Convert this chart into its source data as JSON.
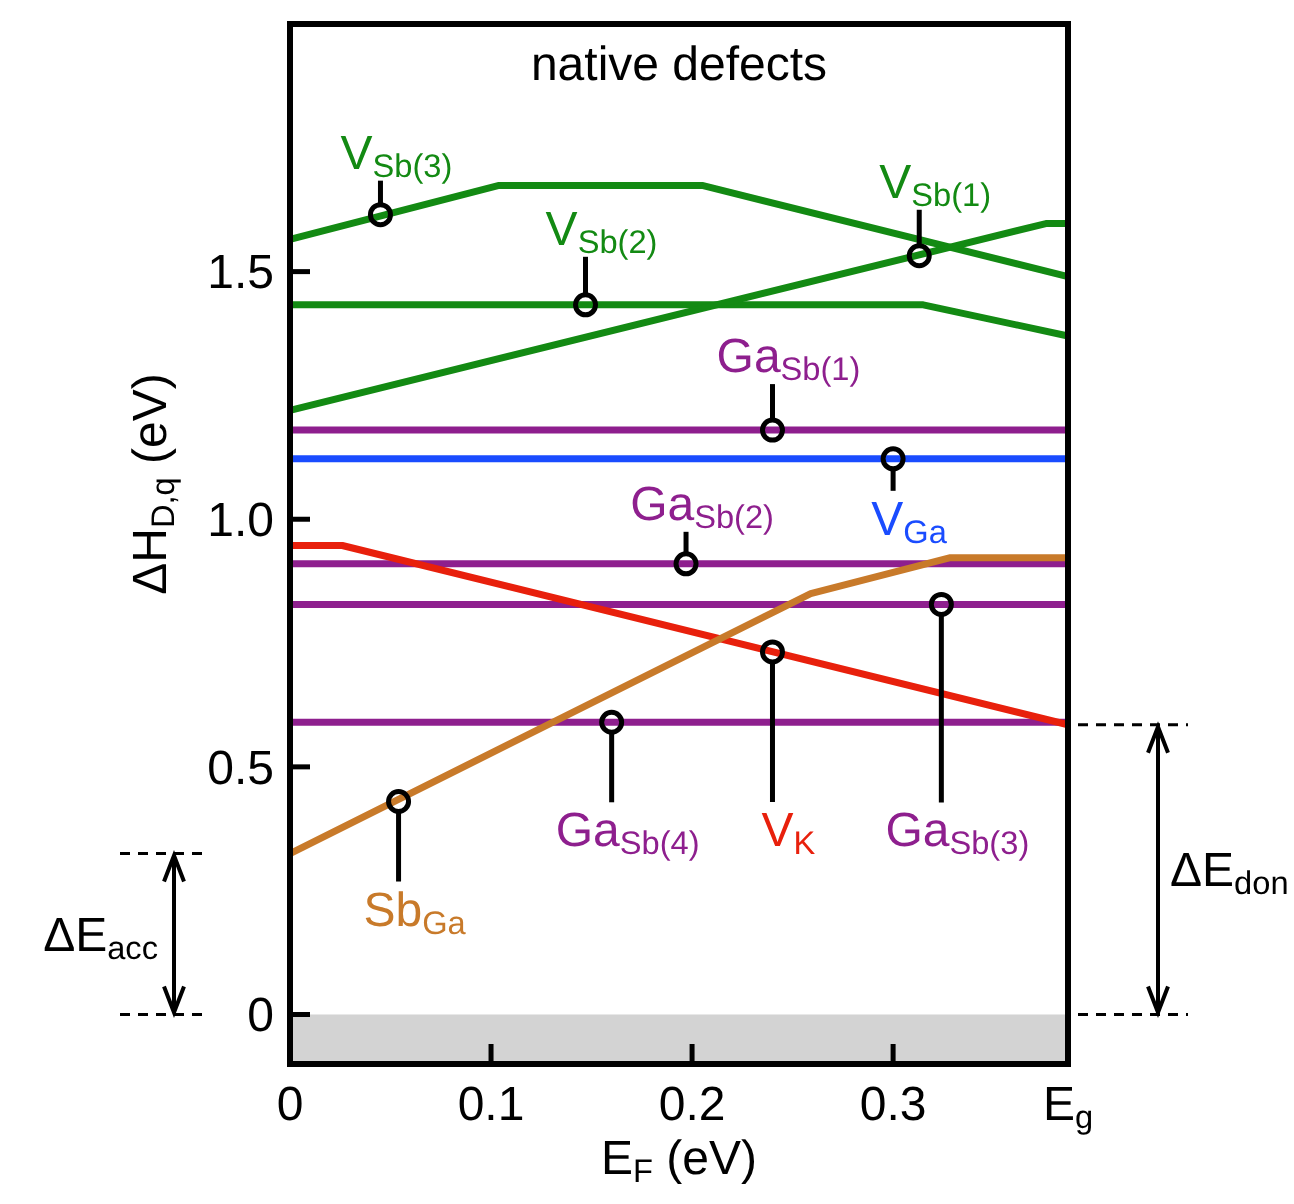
{
  "chart_data": {
    "type": "line",
    "title": "native defects",
    "xlabel": "E$_{F}$ (eV)",
    "ylabel": "ΔH$_{D,q}$ (eV)",
    "xlim": [
      0,
      0.387
    ],
    "ylim": [
      -0.1,
      2.0
    ],
    "xticks": [
      0,
      0.1,
      0.2,
      0.3,
      {
        "value": 0.387,
        "label": "E$_{g}$"
      }
    ],
    "yticks": [
      0,
      0.5,
      {
        "value": 1,
        "label": "1.0"
      },
      1.5
    ],
    "grid": false,
    "series": [
      {
        "color": "#138a13",
        "x": [
          0,
          0.104,
          0.205,
          0.387
        ],
        "values": [
          1.565,
          1.674,
          1.674,
          1.49
        ]
      },
      {
        "color": "#138a13",
        "x": [
          0,
          0.315,
          0.387
        ],
        "values": [
          1.433,
          1.433,
          1.37
        ]
      },
      {
        "color": "#138a13",
        "x": [
          0,
          0.376,
          0.387
        ],
        "values": [
          1.22,
          1.597,
          1.597
        ]
      },
      {
        "color": "#8e1f8e",
        "x": [
          0,
          0.387
        ],
        "values": [
          1.18,
          1.18
        ]
      },
      {
        "color": "#1a4cff",
        "x": [
          0,
          0.387
        ],
        "values": [
          1.122,
          1.122
        ]
      },
      {
        "color": "#8e1f8e",
        "x": [
          0,
          0.387
        ],
        "values": [
          0.91,
          0.91
        ]
      },
      {
        "color": "#8e1f8e",
        "x": [
          0,
          0.387
        ],
        "values": [
          0.828,
          0.828
        ]
      },
      {
        "color": "#8e1f8e",
        "x": [
          0,
          0.387
        ],
        "values": [
          0.59,
          0.59
        ]
      },
      {
        "color": "#e8200c",
        "x": [
          0,
          0.026,
          0.387
        ],
        "values": [
          0.947,
          0.947,
          0.585
        ]
      },
      {
        "color": "#c87a2a",
        "x": [
          0,
          0.259,
          0.328,
          0.387
        ],
        "values": [
          0.325,
          0.85,
          0.922,
          0.922
        ]
      }
    ],
    "bands": [
      {
        "axis": "y",
        "from": -0.1,
        "to": 0,
        "color": "#d3d3d3"
      }
    ],
    "annotations": [
      {
        "text": "V$_{Sb(3)}$",
        "x": 0.045,
        "y": 1.615
      },
      {
        "text": "V$_{Sb(2)}$",
        "x": 0.147,
        "y": 1.433
      },
      {
        "text": "V$_{Sb(1)}$",
        "x": 0.313,
        "y": 1.532
      },
      {
        "text": "Ga$_{Sb(1)}$",
        "x": 0.24,
        "y": 1.18
      },
      {
        "text": "V$_{Ga}$",
        "x": 0.3,
        "y": 1.122
      },
      {
        "text": "Ga$_{Sb(2)}$",
        "x": 0.197,
        "y": 0.91
      },
      {
        "text": "Ga$_{Sb(3)}$",
        "x": 0.324,
        "y": 0.828
      },
      {
        "text": "V$_{K}$",
        "x": 0.24,
        "y": 0.732
      },
      {
        "text": "Ga$_{Sb(4)}$",
        "x": 0.16,
        "y": 0.59
      },
      {
        "text": "Sb$_{Ga}$",
        "x": 0.054,
        "y": 0.43
      },
      "ΔE$_{acc}$",
      "ΔE$_{don}$"
    ]
  }
}
